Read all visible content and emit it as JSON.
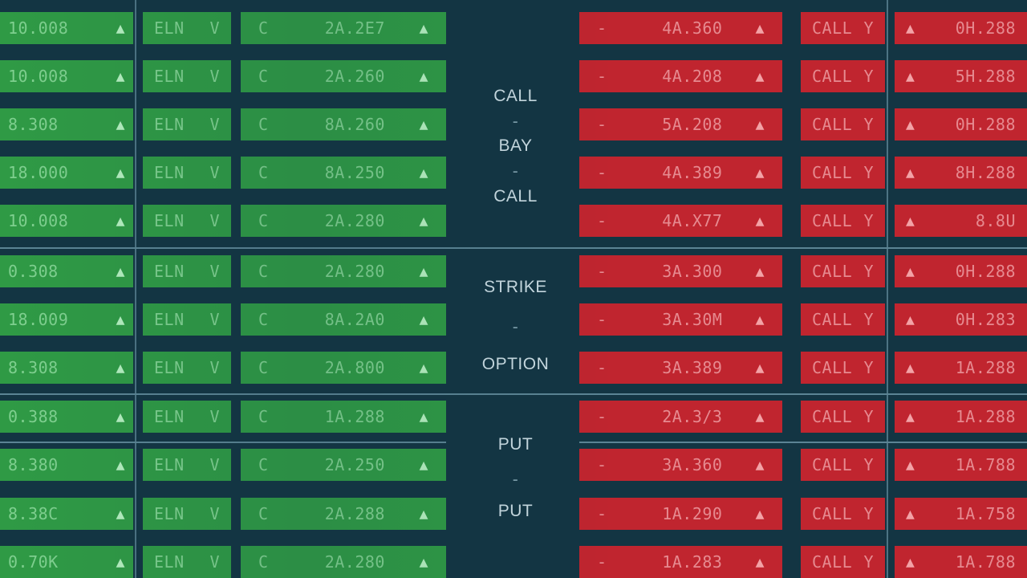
{
  "center_labels": {
    "top": [
      "CALL",
      "-",
      "BAY",
      "-",
      "CALL"
    ],
    "middle": [
      "STRIKE",
      "-",
      "OPTION"
    ],
    "bottom": [
      "PUT",
      "-",
      "PUT"
    ]
  },
  "rows": [
    {
      "a": "10.008",
      "b": "ELN",
      "bv": "V",
      "c": "C",
      "cv": "2A.2E7",
      "d": "-",
      "dv": "4A.360",
      "e": "CALL",
      "ev": "Y",
      "f": "0H.288"
    },
    {
      "a": "10.008",
      "b": "ELN",
      "bv": "V",
      "c": "C",
      "cv": "2A.260",
      "d": "-",
      "dv": "4A.208",
      "e": "CALL",
      "ev": "Y",
      "f": "5H.288"
    },
    {
      "a": "8.308",
      "b": "ELN",
      "bv": "V",
      "c": "C",
      "cv": "8A.260",
      "d": "-",
      "dv": "5A.208",
      "e": "CALL",
      "ev": "Y",
      "f": "0H.288"
    },
    {
      "a": "18.000",
      "b": "ELN",
      "bv": "V",
      "c": "C",
      "cv": "8A.250",
      "d": "-",
      "dv": "4A.389",
      "e": "CALL",
      "ev": "Y",
      "f": "8H.288"
    },
    {
      "a": "10.008",
      "b": "ELN",
      "bv": "V",
      "c": "C",
      "cv": "2A.280",
      "d": "-",
      "dv": "4A.X77",
      "e": "CALL",
      "ev": "Y",
      "f": "8.8U"
    },
    {
      "a": "0.308",
      "b": "ELN",
      "bv": "V",
      "c": "C",
      "cv": "2A.280",
      "d": "-",
      "dv": "3A.300",
      "e": "CALL",
      "ev": "Y",
      "f": "0H.288"
    },
    {
      "a": "18.009",
      "b": "ELN",
      "bv": "V",
      "c": "C",
      "cv": "8A.2A0",
      "d": "-",
      "dv": "3A.30M",
      "e": "CALL",
      "ev": "Y",
      "f": "0H.283"
    },
    {
      "a": "8.308",
      "b": "ELN",
      "bv": "V",
      "c": "C",
      "cv": "2A.800",
      "d": "-",
      "dv": "3A.389",
      "e": "CALL",
      "ev": "Y",
      "f": "1A.288"
    },
    {
      "a": "0.388",
      "b": "ELN",
      "bv": "V",
      "c": "C",
      "cv": "1A.288",
      "d": "-",
      "dv": "2A.3/3",
      "e": "CALL",
      "ev": "Y",
      "f": "1A.288"
    },
    {
      "a": "8.380",
      "b": "ELN",
      "bv": "V",
      "c": "C",
      "cv": "2A.250",
      "d": "-",
      "dv": "3A.360",
      "e": "CALL",
      "ev": "Y",
      "f": "1A.788"
    },
    {
      "a": "8.38C",
      "b": "ELN",
      "bv": "V",
      "c": "C",
      "cv": "2A.288",
      "d": "-",
      "dv": "1A.290",
      "e": "CALL",
      "ev": "Y",
      "f": "1A.758"
    },
    {
      "a": "0.70K",
      "b": "ELN",
      "bv": "V",
      "c": "C",
      "cv": "2A.280",
      "d": "-",
      "dv": "1A.283",
      "e": "CALL",
      "ev": "Y",
      "f": "1A.788"
    }
  ],
  "colors": {
    "up": "#2f9a45",
    "down": "#c0252f",
    "background": "#133543"
  },
  "icons": {
    "up_triangle": "▲",
    "cup_icon": "Y"
  }
}
